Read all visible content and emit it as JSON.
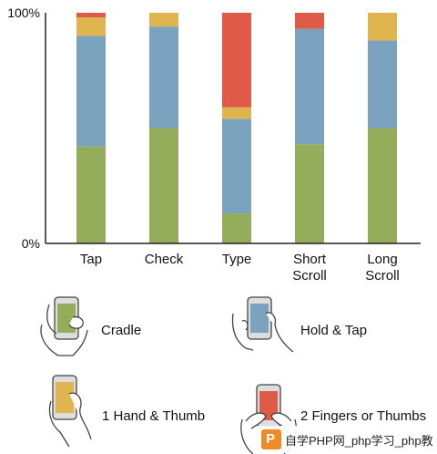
{
  "chart_data": {
    "type": "bar",
    "stacked": true,
    "categories": [
      "Tap",
      "Check",
      "Type",
      "Short Scroll",
      "Long Scroll"
    ],
    "category_lines": [
      [
        "Tap"
      ],
      [
        "Check"
      ],
      [
        "Type"
      ],
      [
        "Short",
        "Scroll"
      ],
      [
        "Long",
        "Scroll"
      ]
    ],
    "ylim": [
      0,
      100
    ],
    "ytick_labels": [
      "0%",
      "100%"
    ],
    "grid": false,
    "series": [
      {
        "name": "Cradle",
        "color": "#93ad5b",
        "values": [
          42,
          50,
          13,
          43,
          50
        ]
      },
      {
        "name": "Hold & Tap",
        "color": "#7ba3bf",
        "values": [
          48,
          44,
          41,
          50,
          38
        ]
      },
      {
        "name": "1 Hand & Thumb",
        "color": "#e0b44e",
        "values": [
          8,
          6,
          5,
          0,
          12
        ]
      },
      {
        "name": "2 Fingers or Thumbs",
        "color": "#e05a48",
        "values": [
          2,
          0,
          41,
          7,
          0
        ]
      }
    ]
  },
  "legend": {
    "items": [
      {
        "label": "Cradle",
        "icon": "cradle-hands-icon",
        "screen_color": "#93ad5b"
      },
      {
        "label": "Hold & Tap",
        "icon": "hold-and-tap-hands-icon",
        "screen_color": "#7ba3bf"
      },
      {
        "label": "1 Hand & Thumb",
        "icon": "one-hand-thumb-icon",
        "screen_color": "#e0b44e"
      },
      {
        "label": "2 Fingers or Thumbs",
        "icon": "two-thumbs-hands-icon",
        "screen_color": "#e05a48"
      }
    ]
  },
  "watermark": {
    "logo_letter": "P",
    "text": "自学PHP网_php学习_php教"
  }
}
